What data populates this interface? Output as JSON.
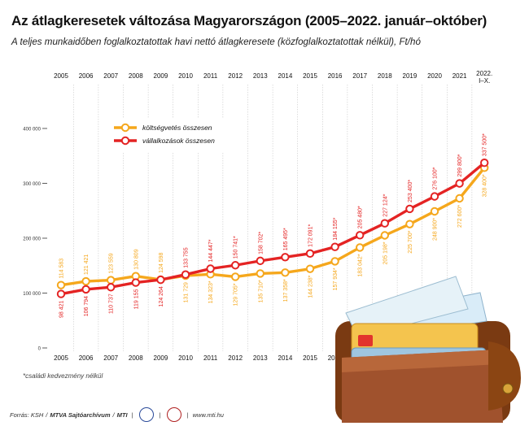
{
  "title": "Az átlagkeresetek változása Magyarországon (2005–2022. január–október)",
  "subtitle": "A teljes munkaidőben foglalkoztatottak havi nettó átlagkeresete (közfoglalkoztatottak nélkül), Ft/hó",
  "footnote": "*családi kedvezmény nélkül",
  "footer": {
    "source": "Forrás: KSH",
    "credit": "MTVA Sajtóarchívum",
    "agency": "MTI",
    "url": "www.mti.hu"
  },
  "chart_data": {
    "type": "line",
    "title": "Az átlagkeresetek változása Magyarországon (2005–2022. január–október)",
    "ylim": [
      0,
      400000
    ],
    "y_ticks": [
      0,
      100000,
      200000,
      300000,
      400000
    ],
    "y_tick_labels": [
      "0",
      "100 000",
      "200 000",
      "300 000",
      "400 000"
    ],
    "grid": false,
    "legend_position": "top-left",
    "x": [
      "2005",
      "2006",
      "2007",
      "2008",
      "2009",
      "2010",
      "2011",
      "2012",
      "2013",
      "2014",
      "2015",
      "2016",
      "2017",
      "2018",
      "2019",
      "2020",
      "2021",
      "2022. I–X."
    ],
    "x_labels_top": [
      "2005",
      "2006",
      "2007",
      "2008",
      "2009",
      "2010",
      "2011",
      "2012",
      "2013",
      "2014",
      "2015",
      "2016",
      "2017",
      "2018",
      "2019",
      "2020",
      "2021",
      "2022. I–X."
    ],
    "x_labels_bottom": [
      "2005",
      "2006",
      "2007",
      "2008",
      "2009",
      "2010",
      "2011",
      "2012",
      "2013",
      "2014",
      "2015",
      "2016"
    ],
    "series": [
      {
        "name": "költségvetés összesen",
        "color": "#f5a71c",
        "values": [
          114583,
          121421,
          123559,
          130809,
          124598,
          131729,
          134323,
          129705,
          135710,
          137358,
          144238,
          157934,
          183042,
          205198,
          225700,
          248900,
          272600,
          328400
        ],
        "labels": [
          "114 583",
          "121 421",
          "123 559",
          "130 809",
          "124 598",
          "131 729",
          "134 323*",
          "129 705*",
          "135 710*",
          "137 358*",
          "144 238*",
          "157 934*",
          "183 042*",
          "205 198*",
          "225 700*",
          "248 900*",
          "272 600*",
          "328 400*"
        ]
      },
      {
        "name": "vállalkozások összesen",
        "color": "#e42323",
        "values": [
          98421,
          106794,
          110737,
          119155,
          124264,
          133755,
          144447,
          150741,
          158702,
          165495,
          172091,
          184155,
          205480,
          227124,
          253400,
          276100,
          299800,
          337500
        ],
        "labels": [
          "98 421",
          "106 794",
          "110 737",
          "119 155",
          "124 264",
          "133 755",
          "144 447*",
          "150 741*",
          "158 702*",
          "165 495*",
          "172 091*",
          "184 155*",
          "205 480*",
          "227 124*",
          "253 400*",
          "276 100*",
          "299 800*",
          "337 500*"
        ]
      }
    ]
  }
}
